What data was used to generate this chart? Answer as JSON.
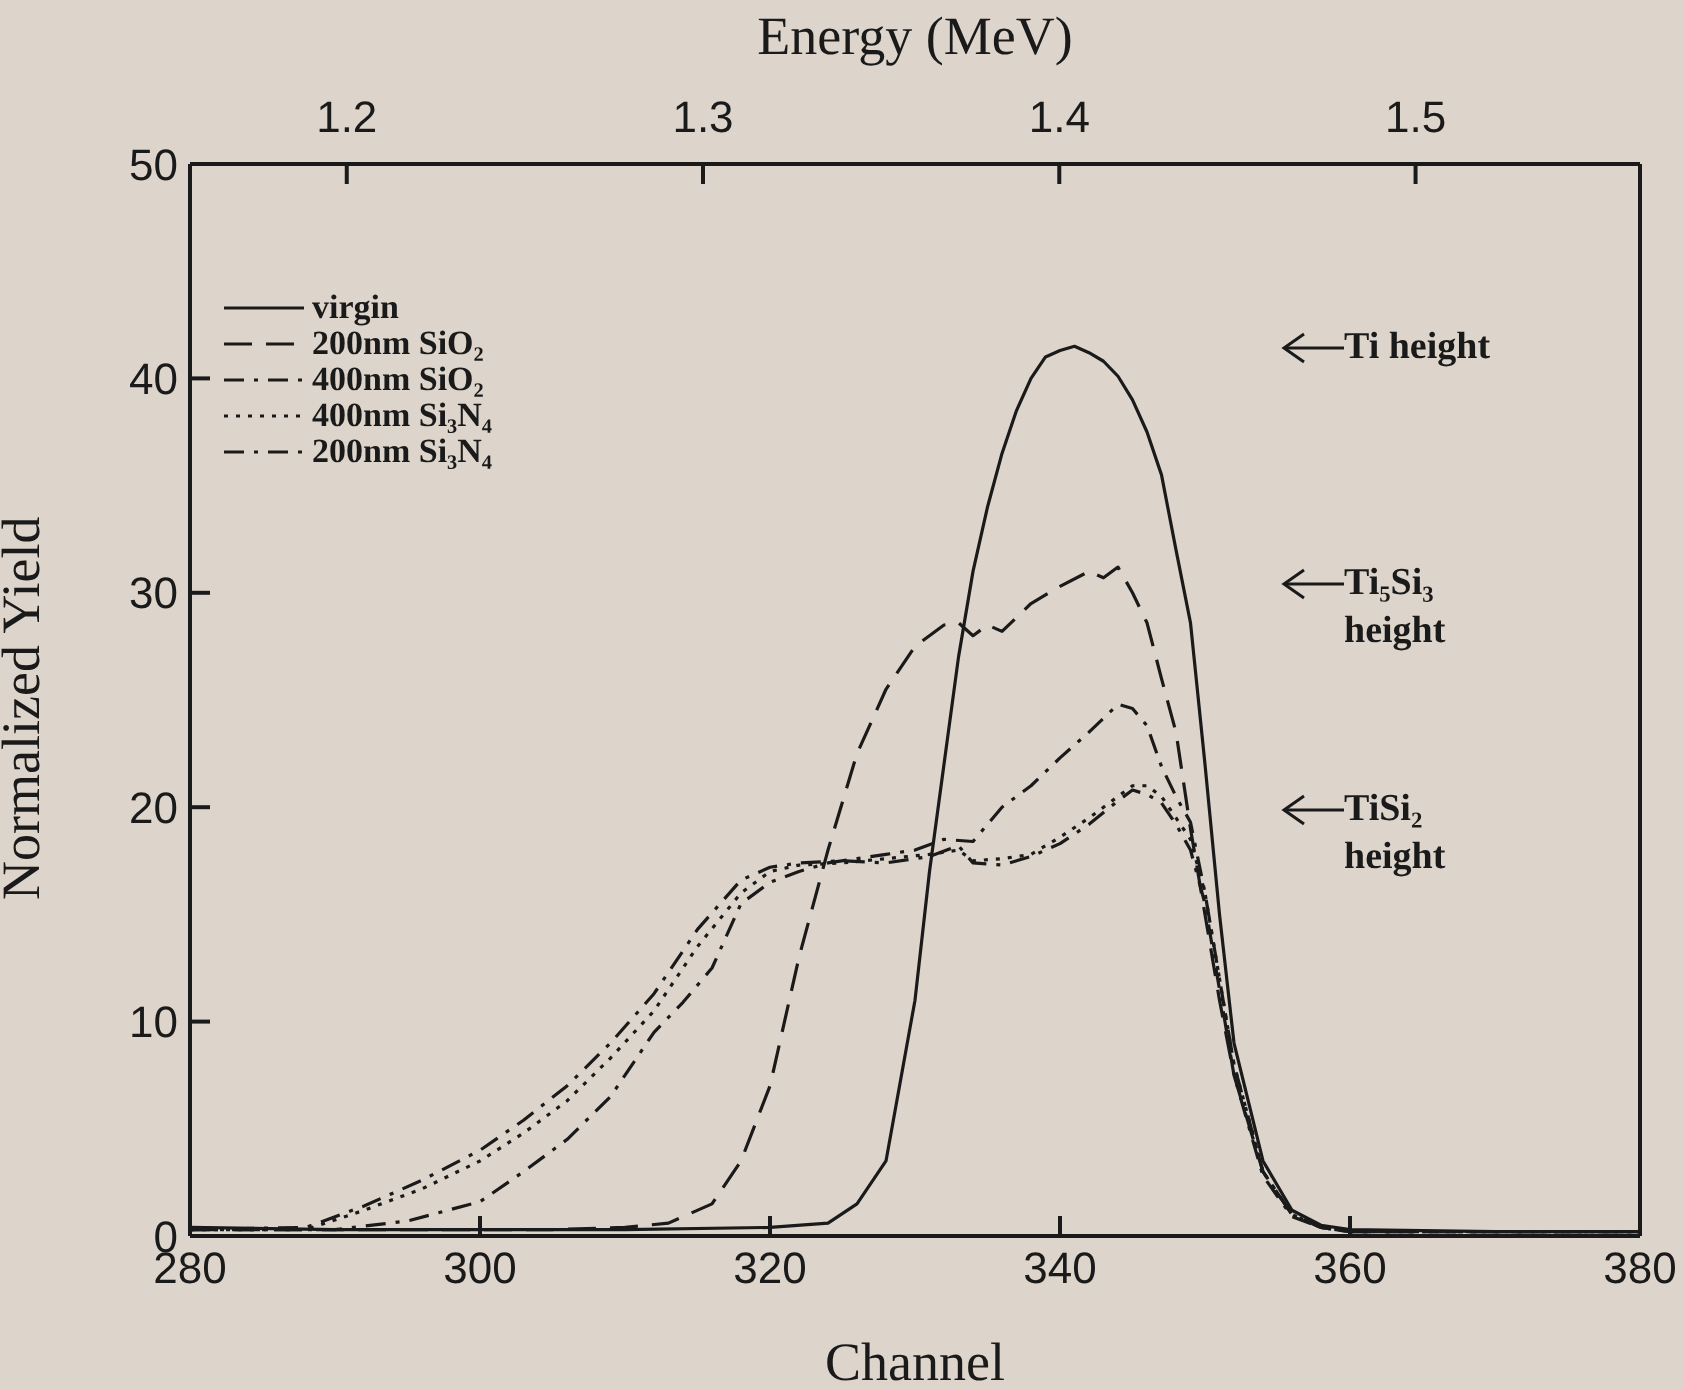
{
  "chart_data": {
    "type": "line",
    "xlabel": "Channel",
    "ylabel": "Normalized Yield",
    "x2label": "Energy (MeV)",
    "xlim": [
      280,
      380
    ],
    "xticks": [
      280,
      300,
      320,
      340,
      360,
      380
    ],
    "x2lim": [
      1.156,
      1.563
    ],
    "x2ticks": [
      1.2,
      1.3,
      1.4,
      1.5
    ],
    "ylim": [
      0,
      50
    ],
    "yticks": [
      0,
      10,
      20,
      30,
      40,
      50
    ],
    "grid": false,
    "legend": "top left",
    "marker": "none",
    "series": [
      {
        "name": "virgin",
        "color": "#1a1a1a",
        "line_style": "solid",
        "x": [
          280,
          290,
          300,
          310,
          320,
          324,
          326,
          328,
          330,
          331,
          332,
          333,
          334,
          335,
          336,
          337,
          338,
          339,
          340,
          341,
          342,
          343,
          344,
          345,
          346,
          347,
          348,
          349,
          350,
          351,
          352,
          354,
          356,
          358,
          360,
          370,
          380
        ],
        "values": [
          0.4,
          0.3,
          0.3,
          0.3,
          0.4,
          0.6,
          1.5,
          3.5,
          11,
          17,
          22,
          27,
          31,
          34,
          36.5,
          38.5,
          40,
          41,
          41.3,
          41.5,
          41.2,
          40.8,
          40.1,
          39,
          37.5,
          35.5,
          32,
          28.6,
          22,
          15,
          9,
          3.5,
          1.2,
          0.5,
          0.3,
          0.2,
          0.2
        ]
      },
      {
        "name": "200nm SiO₂",
        "color": "#1a1a1a",
        "line_style": "dashed",
        "x": [
          280,
          290,
          300,
          305,
          310,
          313,
          316,
          318,
          320,
          322,
          324,
          326,
          328,
          330,
          332,
          333,
          334,
          335,
          336,
          338,
          340,
          342,
          343,
          344,
          345,
          346,
          347,
          348,
          349,
          350,
          351,
          352,
          354,
          356,
          358,
          360,
          370,
          380
        ],
        "values": [
          0.3,
          0.3,
          0.3,
          0.3,
          0.4,
          0.6,
          1.5,
          3.5,
          7,
          13,
          18,
          22.5,
          25.5,
          27.5,
          28.5,
          28.6,
          28,
          28.5,
          28.2,
          29.5,
          30.3,
          31,
          30.7,
          31.2,
          30,
          28.6,
          26,
          23.5,
          19,
          15,
          11,
          7.5,
          3,
          1,
          0.4,
          0.2,
          0.2,
          0.2
        ]
      },
      {
        "name": "400nm SiO₂",
        "color": "#1a1a1a",
        "line_style": "dashdot",
        "x": [
          280,
          290,
          295,
          300,
          303,
          306,
          309,
          312,
          314,
          316,
          318,
          320,
          322,
          324,
          326,
          328,
          330,
          332,
          334,
          336,
          338,
          340,
          342,
          344,
          345,
          346,
          347,
          348,
          349,
          350,
          352,
          354,
          356,
          358,
          360,
          370,
          380
        ],
        "values": [
          0.3,
          0.3,
          0.7,
          1.6,
          3,
          4.5,
          6.5,
          9.5,
          10.9,
          12.5,
          15.5,
          16.5,
          17,
          17.4,
          17.6,
          17.8,
          18,
          18.5,
          18.4,
          20,
          21,
          22.3,
          23.5,
          24.8,
          24.6,
          23.8,
          21.9,
          20.5,
          19.3,
          16,
          8,
          3,
          1,
          0.4,
          0.2,
          0.2,
          0.2
        ]
      },
      {
        "name": "400nm Si₃N₄",
        "color": "#1a1a1a",
        "line_style": "dotted",
        "x": [
          280,
          288,
          292,
          296,
          300,
          303,
          306,
          309,
          312,
          315,
          318,
          320,
          322,
          325,
          328,
          331,
          333,
          334,
          336,
          338,
          340,
          342,
          344,
          345,
          346,
          347,
          348,
          349,
          350,
          352,
          354,
          356,
          358,
          360,
          370,
          380
        ],
        "values": [
          0.3,
          0.3,
          1.2,
          2.2,
          3.5,
          4.8,
          6.3,
          8.3,
          10.5,
          13.5,
          16,
          17,
          17.3,
          17.4,
          17.6,
          17.8,
          18,
          17.5,
          17.6,
          17.8,
          18.6,
          19.5,
          20.5,
          21,
          21,
          20.5,
          19.5,
          18.5,
          16,
          8,
          3,
          1,
          0.4,
          0.2,
          0.2,
          0.2
        ]
      },
      {
        "name": "200nm Si₃N₄",
        "color": "#1a1a1a",
        "line_style": "dashdot",
        "x": [
          280,
          288,
          292,
          296,
          300,
          303,
          306,
          309,
          312,
          315,
          318,
          320,
          322,
          325,
          328,
          331,
          333,
          334,
          336,
          338,
          340,
          342,
          344,
          345,
          346,
          347,
          348,
          349,
          350,
          352,
          354,
          356,
          358,
          360,
          370,
          380
        ],
        "values": [
          0.3,
          0.4,
          1.4,
          2.6,
          4,
          5.4,
          7,
          9,
          11.3,
          14.3,
          16.6,
          17.2,
          17.4,
          17.5,
          17.4,
          17.7,
          18.2,
          17.4,
          17.3,
          17.7,
          18.3,
          19.2,
          20.3,
          20.8,
          20.6,
          20.2,
          19.2,
          18,
          15.5,
          7.5,
          2.8,
          0.9,
          0.4,
          0.2,
          0.2,
          0.2
        ]
      }
    ],
    "annotations": [
      "Ti height",
      "Ti₅Si₃\nheight",
      "TiSi₂\nheight"
    ]
  }
}
